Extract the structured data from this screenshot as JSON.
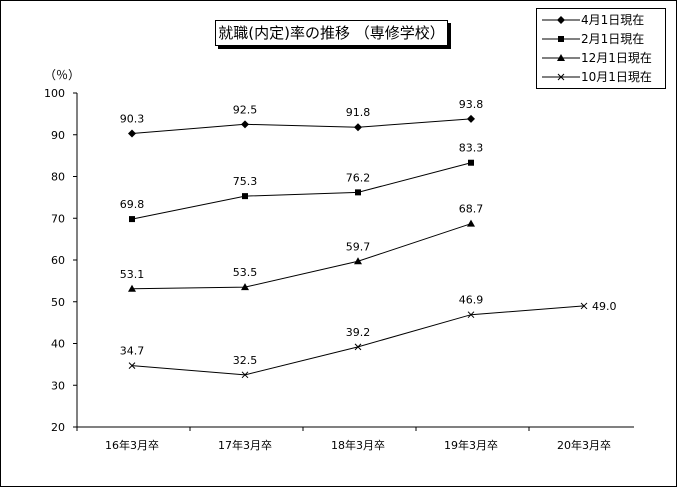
{
  "chart_data": {
    "type": "line",
    "title": "就職(内定)率の推移 （専修学校）",
    "ylabel": "（％）",
    "xlabel": "",
    "ylim": [
      20,
      100
    ],
    "yticks": [
      "100",
      "90",
      "80",
      "70",
      "60",
      "50",
      "40",
      "30",
      "20"
    ],
    "categories": [
      "16年3月卒",
      "17年3月卒",
      "18年3月卒",
      "19年3月卒",
      "20年3月卒"
    ],
    "grid": false,
    "legend_position": "top-right",
    "series": [
      {
        "name": "4月1日現在",
        "marker": "diamond",
        "values": [
          90.3,
          92.5,
          91.8,
          93.8,
          null
        ]
      },
      {
        "name": "2月1日現在",
        "marker": "square",
        "values": [
          69.8,
          75.3,
          76.2,
          83.3,
          null
        ]
      },
      {
        "name": "12月1日現在",
        "marker": "triangle",
        "values": [
          53.1,
          53.5,
          59.7,
          68.7,
          null
        ]
      },
      {
        "name": "10月1日現在",
        "marker": "x",
        "values": [
          34.7,
          32.5,
          39.2,
          46.9,
          49.0
        ]
      }
    ]
  }
}
